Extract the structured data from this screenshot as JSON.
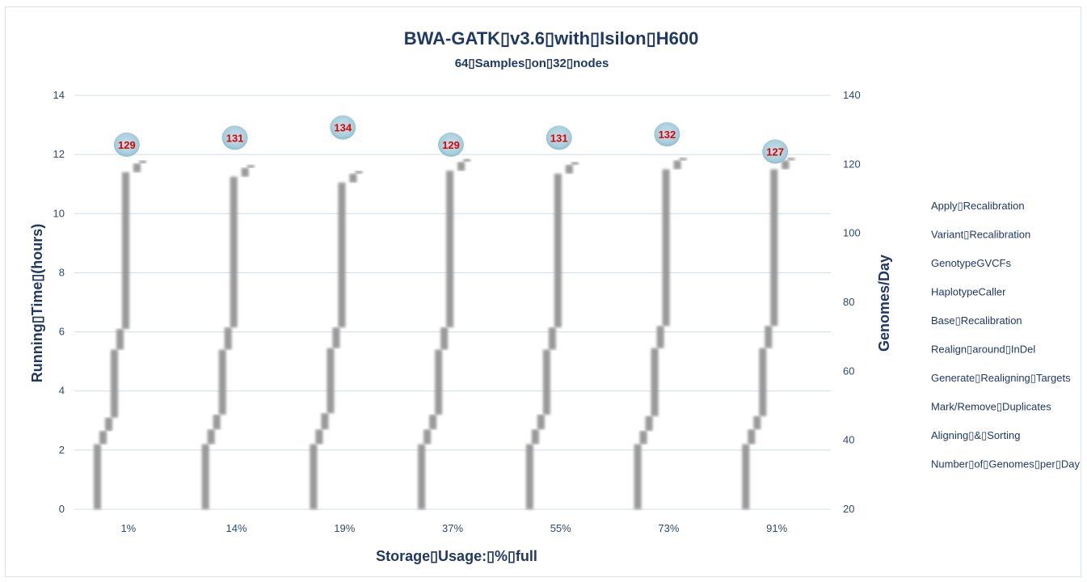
{
  "chart_data": {
    "type": "bar",
    "title": "BWA-GATK▯v3.6▯with▯Isilon▯H600",
    "subtitle": "64▯Samples▯on▯32▯nodes",
    "xlabel": "Storage▯Usage:▯%▯full",
    "ylabel": "Running▯Time▯(hours)",
    "y2label": "Genomes/Day",
    "categories": [
      "1%",
      "14%",
      "19%",
      "37%",
      "55%",
      "73%",
      "91%"
    ],
    "ylim": [
      0,
      14
    ],
    "y2lim": [
      20,
      140
    ],
    "yticks": [
      "0",
      "2",
      "4",
      "6",
      "8",
      "10",
      "12",
      "14"
    ],
    "y2ticks": [
      "20",
      "40",
      "60",
      "80",
      "100",
      "120",
      "140"
    ],
    "grid": true,
    "legend_position": "right",
    "series": [
      {
        "name": "Aligning▯&▯Sorting",
        "values": [
          2.2,
          2.2,
          2.2,
          2.2,
          2.2,
          2.2,
          2.2
        ]
      },
      {
        "name": "Mark/Remove▯Duplicates",
        "values": [
          0.45,
          0.5,
          0.5,
          0.5,
          0.5,
          0.45,
          0.5
        ]
      },
      {
        "name": "Generate▯Realigning▯Targets",
        "values": [
          0.45,
          0.5,
          0.55,
          0.5,
          0.5,
          0.5,
          0.45
        ]
      },
      {
        "name": "Realign▯around▯InDel",
        "values": [
          2.3,
          2.2,
          2.2,
          2.2,
          2.2,
          2.3,
          2.3
        ]
      },
      {
        "name": "Base▯Recalibration",
        "values": [
          0.7,
          0.75,
          0.7,
          0.75,
          0.75,
          0.75,
          0.75
        ]
      },
      {
        "name": "HaplotypeCaller",
        "values": [
          5.3,
          5.1,
          4.9,
          5.3,
          5.2,
          5.3,
          5.3
        ]
      },
      {
        "name": "GenotypeGVCFs",
        "values": [
          0,
          0,
          0,
          0,
          0,
          0,
          0
        ]
      },
      {
        "name": "Variant▯Recalibration",
        "values": [
          0.3,
          0.3,
          0.3,
          0.3,
          0.3,
          0.3,
          0.3
        ]
      },
      {
        "name": "Apply▯Recalibration",
        "values": [
          0.1,
          0.1,
          0.1,
          0.1,
          0.1,
          0.1,
          0.1
        ]
      }
    ],
    "line_series": {
      "name": "Number▯of▯Genomes▯per▯Day",
      "axis": "secondary",
      "values": [
        129,
        131,
        134,
        129,
        131,
        132,
        127
      ]
    },
    "legend": [
      "Apply▯Recalibration",
      "Variant▯Recalibration",
      "GenotypeGVCFs",
      "HaplotypeCaller",
      "Base▯Recalibration",
      "Realign▯around▯InDel",
      "Generate▯Realigning▯Targets",
      "Mark/Remove▯Duplicates",
      "Aligning▯&▯Sorting",
      "Number▯of▯Genomes▯per▯Day"
    ],
    "colors": {
      "bars": "#9a9a9a",
      "gridline": "#d0dce9",
      "marker_fill": "#a9cfdc",
      "marker_label": "#e00000",
      "text": "#1f3864"
    }
  }
}
